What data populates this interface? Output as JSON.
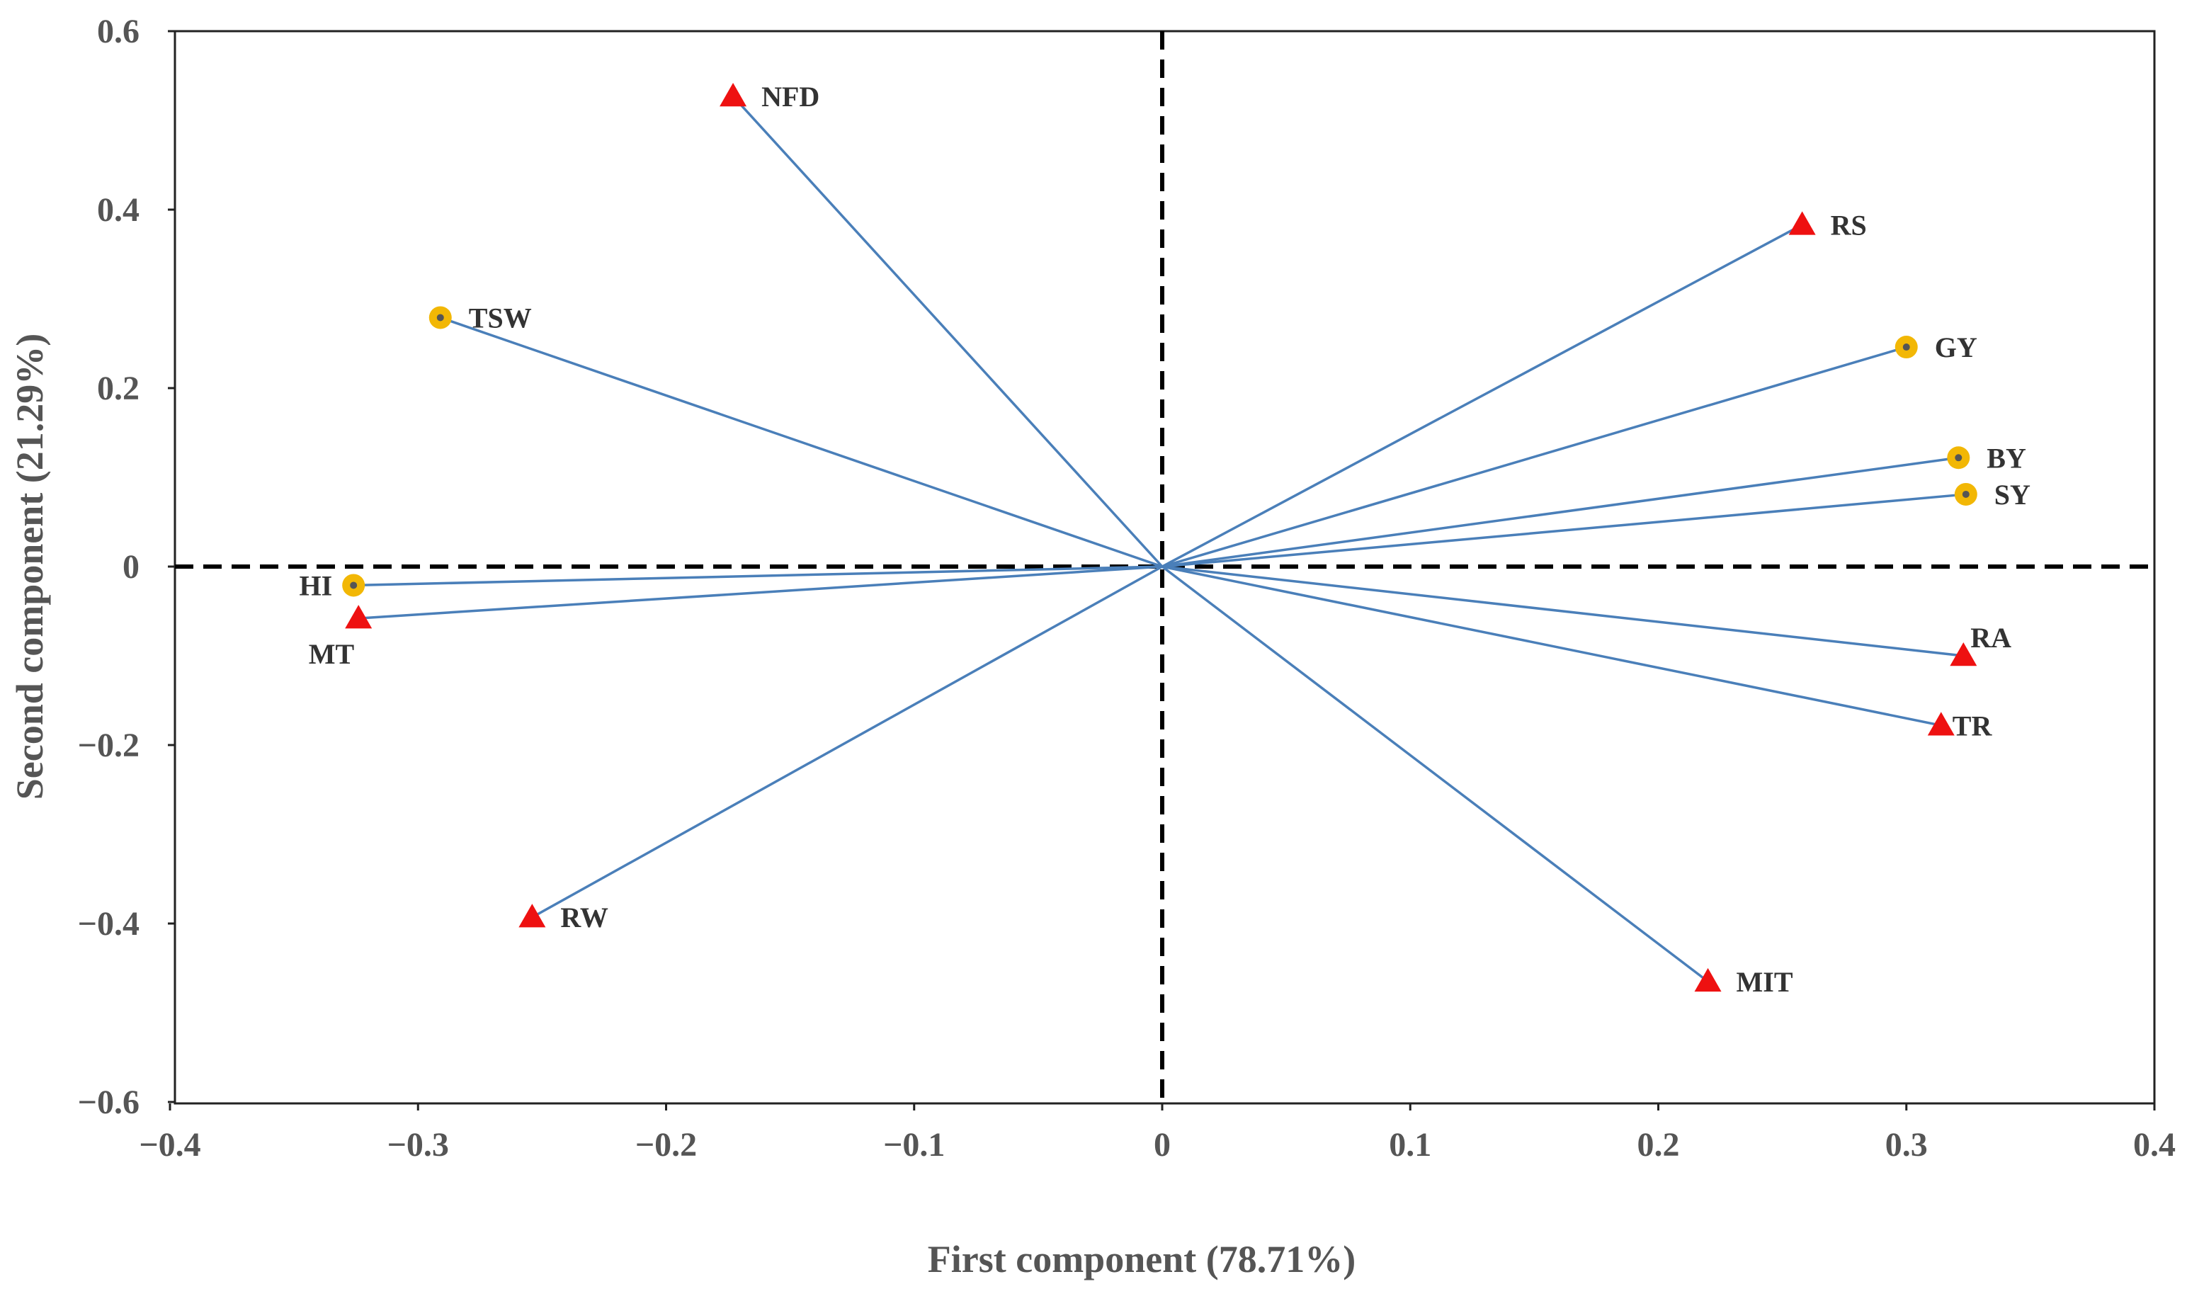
{
  "chart_data": {
    "type": "scatter",
    "subtype": "pca-biplot-loadings",
    "xlabel": "First component (78.71%)",
    "ylabel": "Second component (21.29%)",
    "xlim": [
      -0.4,
      0.4
    ],
    "ylim": [
      -0.6,
      0.6
    ],
    "xticks": [
      -0.4,
      -0.3,
      -0.2,
      -0.1,
      0,
      0.1,
      0.2,
      0.3,
      0.4
    ],
    "xtick_labels": [
      "−0.4",
      "−0.3",
      "−0.2",
      "−0.1",
      "0",
      "0.1",
      "0.2",
      "0.3",
      "0.4"
    ],
    "yticks": [
      -0.6,
      -0.4,
      -0.2,
      0,
      0.2,
      0.4,
      0.6
    ],
    "ytick_labels": [
      "−0.6",
      "−0.4",
      "−0.2",
      "0",
      "0.2",
      "0.4",
      "0.6"
    ],
    "grid": false,
    "zero_lines": "dashed",
    "marker_styles": {
      "triangle": {
        "color": "#ee1111"
      },
      "circle": {
        "color": "#f2b705",
        "dot_color": "#555555"
      }
    },
    "vector_color": "#4a7fb9",
    "points": [
      {
        "label": "NFD",
        "x": -0.173,
        "y": 0.527,
        "marker": "triangle",
        "label_pos": "right"
      },
      {
        "label": "RS",
        "x": 0.258,
        "y": 0.383,
        "marker": "triangle",
        "label_pos": "right"
      },
      {
        "label": "TSW",
        "x": -0.291,
        "y": 0.279,
        "marker": "circle",
        "label_pos": "right"
      },
      {
        "label": "GY",
        "x": 0.3,
        "y": 0.246,
        "marker": "circle",
        "label_pos": "right"
      },
      {
        "label": "BY",
        "x": 0.321,
        "y": 0.122,
        "marker": "circle",
        "label_pos": "right"
      },
      {
        "label": "SY",
        "x": 0.324,
        "y": 0.081,
        "marker": "circle",
        "label_pos": "right"
      },
      {
        "label": "HI",
        "x": -0.326,
        "y": -0.021,
        "marker": "circle",
        "label_pos": "left"
      },
      {
        "label": "MT",
        "x": -0.324,
        "y": -0.058,
        "marker": "triangle",
        "label_pos": "below-left"
      },
      {
        "label": "RA",
        "x": 0.323,
        "y": -0.1,
        "marker": "triangle",
        "label_pos": "above-right"
      },
      {
        "label": "TR",
        "x": 0.314,
        "y": -0.178,
        "marker": "triangle",
        "label_pos": "right-close"
      },
      {
        "label": "RW",
        "x": -0.254,
        "y": -0.393,
        "marker": "triangle",
        "label_pos": "right"
      },
      {
        "label": "MIT",
        "x": 0.22,
        "y": -0.465,
        "marker": "triangle",
        "label_pos": "right"
      }
    ]
  }
}
